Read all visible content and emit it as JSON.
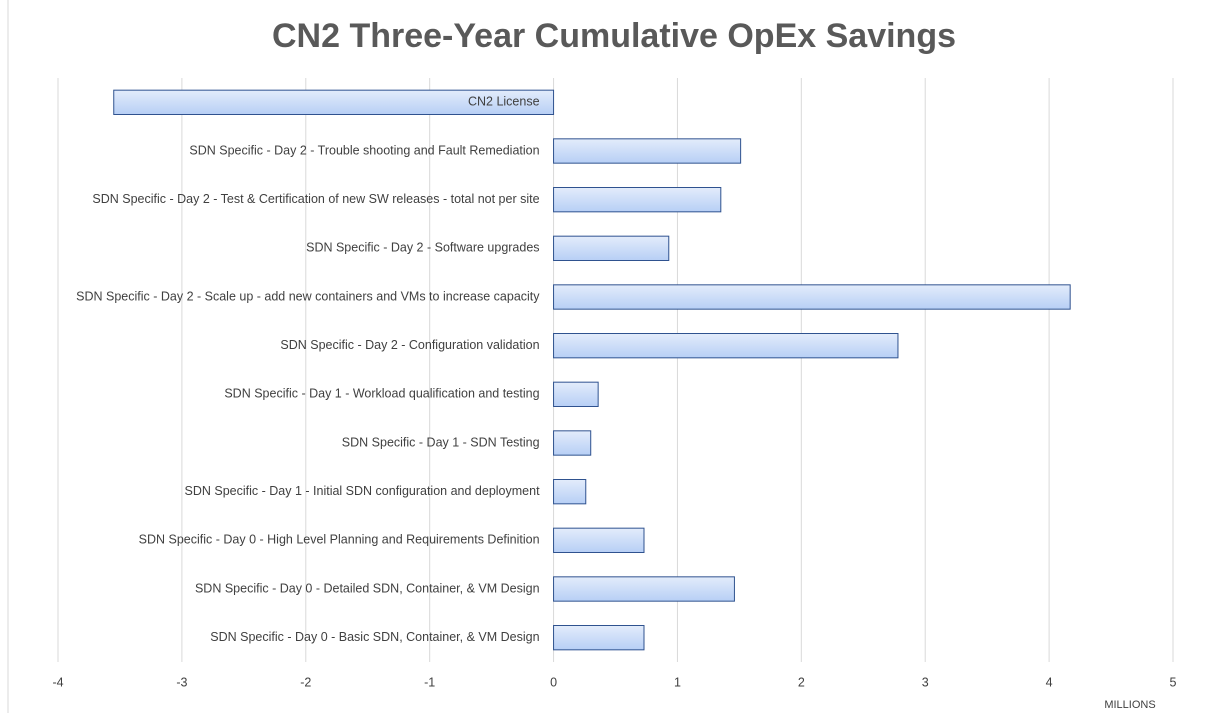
{
  "chart_data": {
    "type": "hbar",
    "title": "CN2 Three-Year Cumulative OpEx Savings",
    "x_label": "MILLIONS",
    "categories": [
      "CN2 License",
      "SDN Specific - Day 2 - Trouble shooting and Fault Remediation",
      "SDN Specific - Day 2 - Test & Certification of new SW releases - total not per site",
      "SDN Specific - Day 2 - Software upgrades",
      "SDN Specific - Day 2 - Scale up - add new containers and VMs to increase capacity",
      "SDN Specific - Day 2 - Configuration validation",
      "SDN Specific - Day 1 - Workload qualification and testing",
      "SDN Specific - Day 1 - SDN Testing",
      "SDN Specific - Day 1 - Initial SDN configuration and deployment",
      "SDN Specific - Day 0 - High Level Planning and Requirements Definition",
      "SDN Specific - Day 0 - Detailed SDN, Container, & VM Design",
      "SDN Specific - Day 0 - Basic SDN, Container, & VM Design"
    ],
    "values": [
      -3.55,
      1.51,
      1.35,
      0.93,
      4.17,
      2.78,
      0.36,
      0.3,
      0.26,
      0.73,
      1.46,
      0.73
    ],
    "color": "#b7cff5",
    "xlim": [
      -4,
      5
    ],
    "xticks": [
      -4,
      -3,
      -2,
      -1,
      0,
      1,
      2,
      3,
      4,
      5
    ],
    "grid": true
  }
}
